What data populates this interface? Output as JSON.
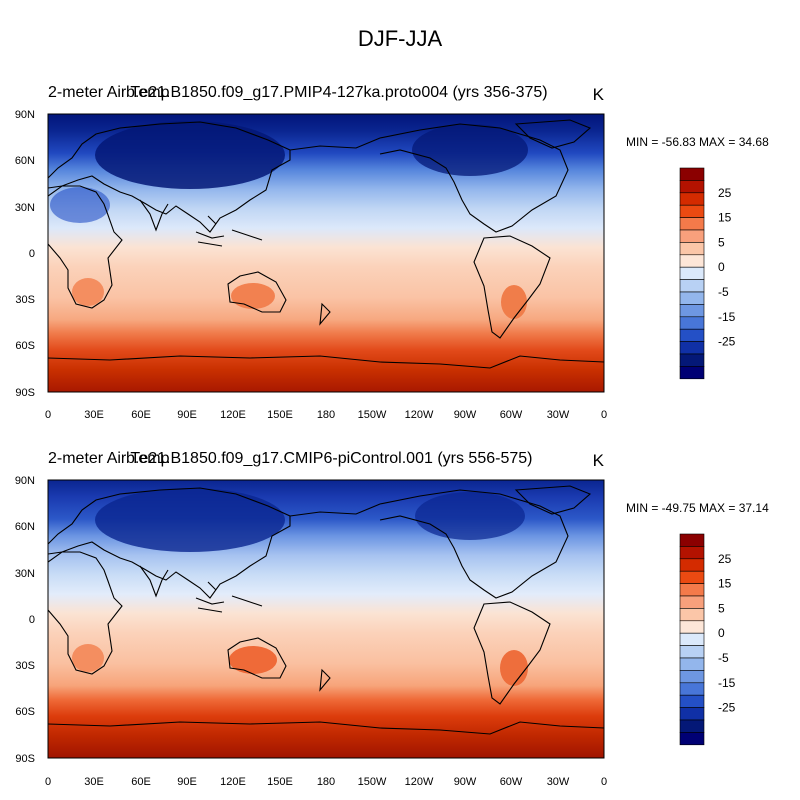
{
  "figure_title": "DJF-JJA",
  "panels": [
    {
      "variable_label": "2-meter Air Temp",
      "case_label": "b.e21.B1850.f09_g17.PMIP4-127ka.proto004 (yrs 356-375)",
      "units": "K",
      "min_max": "MIN = -56.83 MAX =  34.68"
    },
    {
      "variable_label": "2-meter Air Temp",
      "case_label": "b.e21.B1850.f09_g17.CMIP6-piControl.001 (yrs 556-575)",
      "units": "K",
      "min_max": "MIN = -49.75 MAX =  37.14"
    }
  ],
  "map_axes": {
    "lat_ticks": [
      "90N",
      "60N",
      "30N",
      "0",
      "30S",
      "60S",
      "90S"
    ],
    "lon_ticks": [
      "0",
      "30E",
      "60E",
      "90E",
      "120E",
      "150E",
      "180",
      "150W",
      "120W",
      "90W",
      "60W",
      "30W",
      "0"
    ]
  },
  "colorbar": {
    "labels": [
      "25",
      "15",
      "5",
      "0",
      "-5",
      "-15",
      "-25"
    ],
    "colors": [
      "#8b0000",
      "#b31200",
      "#d42b00",
      "#eb4a12",
      "#f47a4a",
      "#f8a07c",
      "#fbc6a8",
      "#fde6d8",
      "#dbe9fb",
      "#b8d1f4",
      "#93b6ec",
      "#6e97e2",
      "#4876d8",
      "#2450c6",
      "#1030a6",
      "#041877",
      "#000074"
    ]
  }
}
